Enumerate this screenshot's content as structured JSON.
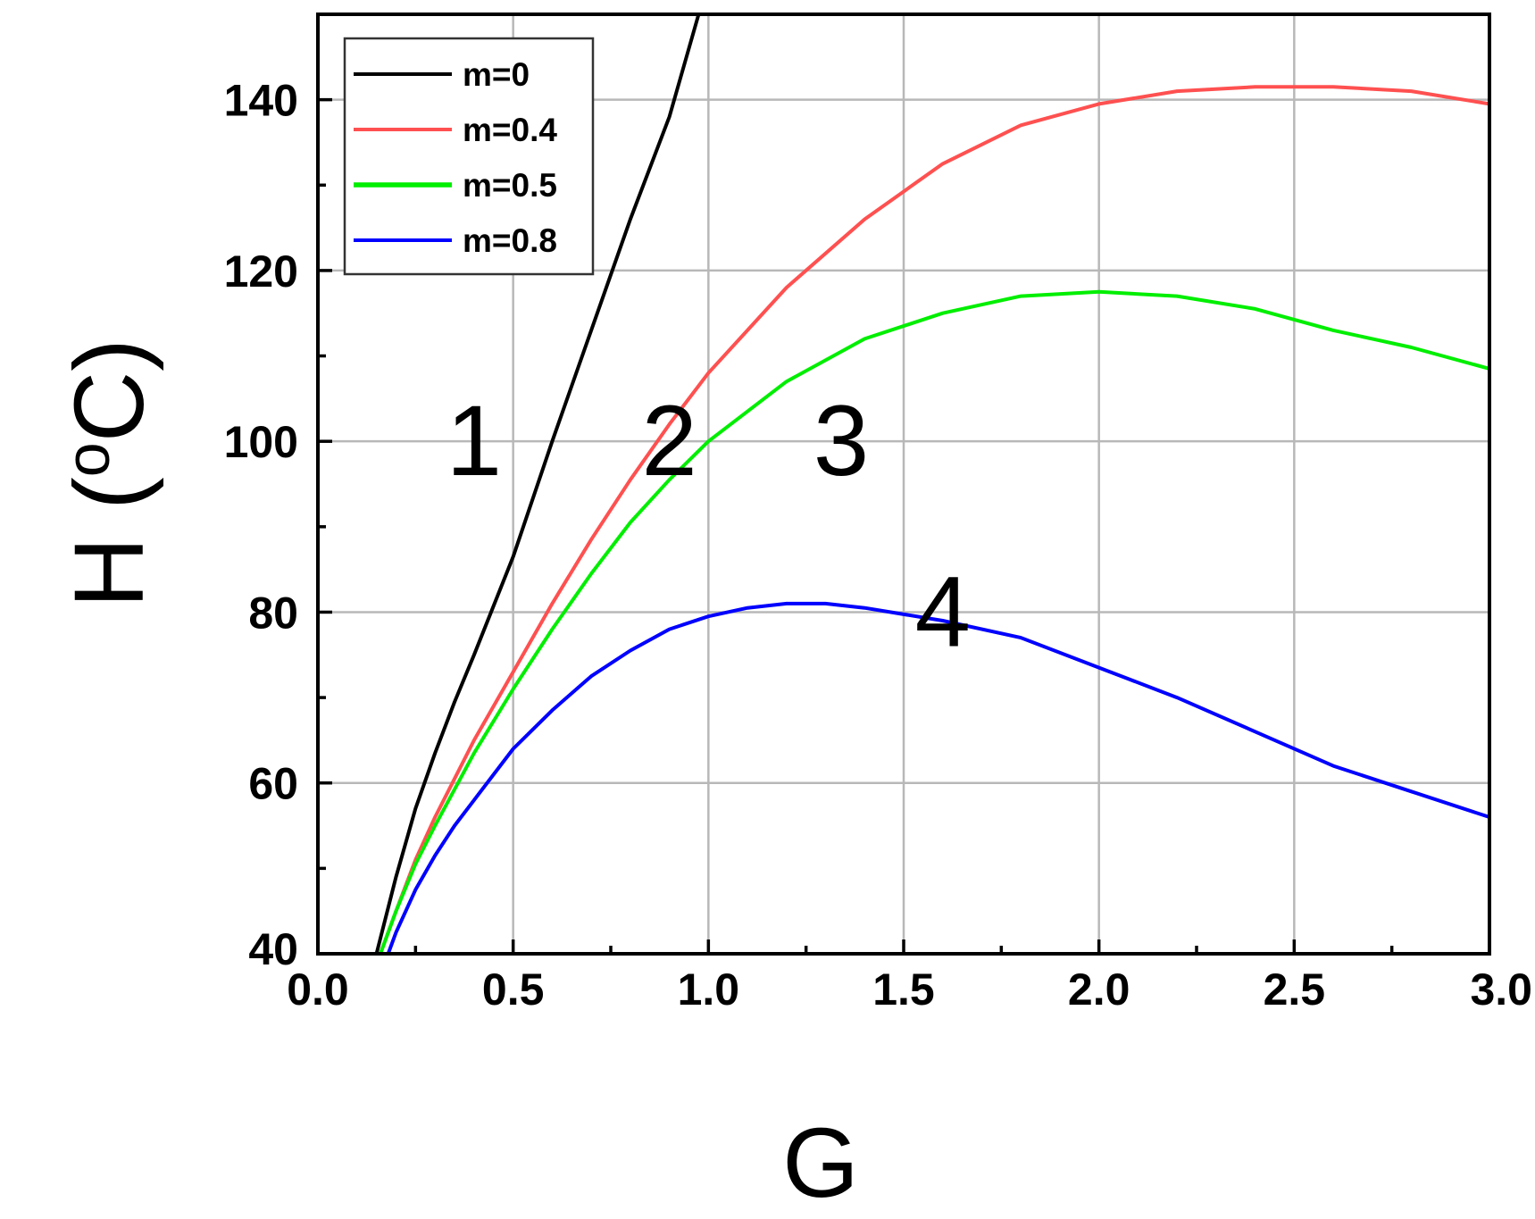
{
  "chart_data": {
    "type": "line",
    "title": "",
    "xlabel": "G",
    "ylabel": "H (ºC)",
    "ylabel_main": "H (",
    "ylabel_sup": "o",
    "ylabel_end": "C)",
    "xlim": [
      0.0,
      3.0
    ],
    "ylim": [
      40,
      150
    ],
    "x_ticks": [
      0.0,
      0.5,
      1.0,
      1.5,
      2.0,
      2.5,
      3.0
    ],
    "x_tick_labels": [
      "0.0",
      "0.5",
      "1.0",
      "1.5",
      "2.0",
      "2.5",
      "3.0"
    ],
    "y_ticks": [
      40,
      60,
      80,
      100,
      120,
      140
    ],
    "y_tick_labels": [
      "40",
      "60",
      "80",
      "100",
      "120",
      "140"
    ],
    "grid": true,
    "legend_position": "top-left",
    "series": [
      {
        "name": "m=0",
        "color": "#000000",
        "x": [
          0.15,
          0.2,
          0.25,
          0.3,
          0.35,
          0.4,
          0.5,
          0.6,
          0.7,
          0.8,
          0.9,
          0.975
        ],
        "y": [
          40,
          49,
          57,
          63.5,
          69.5,
          75,
          86.5,
          100,
          113,
          126,
          138,
          150
        ]
      },
      {
        "name": "m=0.4",
        "color": "#ff5050",
        "x": [
          0.16,
          0.2,
          0.25,
          0.3,
          0.4,
          0.5,
          0.6,
          0.7,
          0.8,
          0.9,
          1.0,
          1.2,
          1.4,
          1.6,
          1.8,
          2.0,
          2.2,
          2.4,
          2.6,
          2.8,
          3.0
        ],
        "y": [
          40,
          45,
          51,
          56,
          65,
          73,
          81,
          88.5,
          95.5,
          102,
          108,
          118,
          126,
          132.5,
          137,
          139.5,
          141,
          141.5,
          141.5,
          141,
          139.5
        ]
      },
      {
        "name": "m=0.5",
        "color": "#00ee00",
        "x": [
          0.16,
          0.2,
          0.25,
          0.3,
          0.4,
          0.5,
          0.6,
          0.7,
          0.8,
          0.9,
          1.0,
          1.2,
          1.4,
          1.6,
          1.8,
          2.0,
          2.2,
          2.4,
          2.6,
          2.8,
          3.0
        ],
        "y": [
          40,
          45,
          50.5,
          55,
          63.5,
          71,
          78,
          84.5,
          90.5,
          95.5,
          100,
          107,
          112,
          115,
          117,
          117.5,
          117,
          115.5,
          113,
          111,
          108.5
        ]
      },
      {
        "name": "m=0.8",
        "color": "#0000ff",
        "x": [
          0.18,
          0.2,
          0.25,
          0.3,
          0.35,
          0.4,
          0.5,
          0.6,
          0.7,
          0.8,
          0.9,
          1.0,
          1.1,
          1.2,
          1.3,
          1.4,
          1.6,
          1.8,
          2.0,
          2.2,
          2.4,
          2.6,
          2.8,
          3.0
        ],
        "y": [
          40,
          42.5,
          47.5,
          51.5,
          55,
          58,
          64,
          68.5,
          72.5,
          75.5,
          78,
          79.5,
          80.5,
          81,
          81,
          80.5,
          79,
          77,
          73.5,
          70,
          66,
          62,
          59,
          56
        ]
      }
    ],
    "annotations": [
      {
        "text": "1",
        "x": 0.4,
        "y": 100
      },
      {
        "text": "2",
        "x": 0.9,
        "y": 100
      },
      {
        "text": "3",
        "x": 1.34,
        "y": 100
      },
      {
        "text": "4",
        "x": 1.6,
        "y": 80
      }
    ]
  }
}
